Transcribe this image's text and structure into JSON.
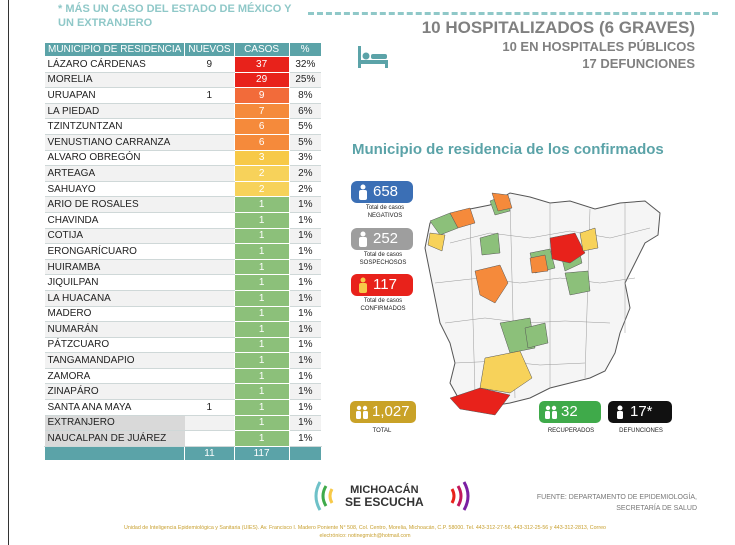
{
  "note": "* MÁS UN CASO DEL ESTADO DE MÉXICO Y UN EXTRANJERO",
  "headline": {
    "hospitalizados": "10 HOSPITALIZADOS (6 GRAVES)",
    "publicos": "10 EN HOSPITALES PÚBLICOS",
    "defunciones": "17 DEFUNCIONES"
  },
  "table": {
    "headers": [
      "MUNICIPIO DE RESIDENCIA",
      "NUEVOS",
      "CASOS",
      "%"
    ],
    "rows": [
      {
        "municipio": "LÁZARO CÁRDENAS",
        "nuevos": "9",
        "casos": "37",
        "pct": "32%",
        "color": "#e8221b"
      },
      {
        "municipio": "MORELIA",
        "nuevos": "",
        "casos": "29",
        "pct": "25%",
        "color": "#e8221b"
      },
      {
        "municipio": "URUAPAN",
        "nuevos": "1",
        "casos": "9",
        "pct": "8%",
        "color": "#f26b3a"
      },
      {
        "municipio": "LA PIEDAD",
        "nuevos": "",
        "casos": "7",
        "pct": "6%",
        "color": "#f58a3b"
      },
      {
        "municipio": "TZINTZUNTZAN",
        "nuevos": "",
        "casos": "6",
        "pct": "5%",
        "color": "#f58a3b"
      },
      {
        "municipio": "VENUSTIANO CARRANZA",
        "nuevos": "",
        "casos": "6",
        "pct": "5%",
        "color": "#f58a3b"
      },
      {
        "municipio": "ALVARO OBREGÓN",
        "nuevos": "",
        "casos": "3",
        "pct": "3%",
        "color": "#f7c948"
      },
      {
        "municipio": "ARTEAGA",
        "nuevos": "",
        "casos": "2",
        "pct": "2%",
        "color": "#f7d25a"
      },
      {
        "municipio": "SAHUAYO",
        "nuevos": "",
        "casos": "2",
        "pct": "2%",
        "color": "#f7d25a"
      },
      {
        "municipio": "ARIO DE ROSALES",
        "nuevos": "",
        "casos": "1",
        "pct": "1%",
        "color": "#8cc07a"
      },
      {
        "municipio": "CHAVINDA",
        "nuevos": "",
        "casos": "1",
        "pct": "1%",
        "color": "#8cc07a"
      },
      {
        "municipio": "COTIJA",
        "nuevos": "",
        "casos": "1",
        "pct": "1%",
        "color": "#8cc07a"
      },
      {
        "municipio": "ERONGARÍCUARO",
        "nuevos": "",
        "casos": "1",
        "pct": "1%",
        "color": "#8cc07a"
      },
      {
        "municipio": "HUIRAMBA",
        "nuevos": "",
        "casos": "1",
        "pct": "1%",
        "color": "#8cc07a"
      },
      {
        "municipio": "JIQUILPAN",
        "nuevos": "",
        "casos": "1",
        "pct": "1%",
        "color": "#8cc07a"
      },
      {
        "municipio": "LA HUACANA",
        "nuevos": "",
        "casos": "1",
        "pct": "1%",
        "color": "#8cc07a"
      },
      {
        "municipio": "MADERO",
        "nuevos": "",
        "casos": "1",
        "pct": "1%",
        "color": "#8cc07a"
      },
      {
        "municipio": "NUMARÁN",
        "nuevos": "",
        "casos": "1",
        "pct": "1%",
        "color": "#8cc07a"
      },
      {
        "municipio": "PÁTZCUARO",
        "nuevos": "",
        "casos": "1",
        "pct": "1%",
        "color": "#8cc07a"
      },
      {
        "municipio": "TANGAMANDAPIO",
        "nuevos": "",
        "casos": "1",
        "pct": "1%",
        "color": "#8cc07a"
      },
      {
        "municipio": "ZAMORA",
        "nuevos": "",
        "casos": "1",
        "pct": "1%",
        "color": "#8cc07a"
      },
      {
        "municipio": "ZINAPÁRO",
        "nuevos": "",
        "casos": "1",
        "pct": "1%",
        "color": "#8cc07a"
      },
      {
        "municipio": "SANTA ANA MAYA",
        "nuevos": "1",
        "casos": "1",
        "pct": "1%",
        "color": "#8cc07a"
      },
      {
        "municipio": "EXTRANJERO",
        "nuevos": "",
        "casos": "1",
        "pct": "1%",
        "color": "#8cc07a"
      },
      {
        "municipio": "NAUCALPAN DE JUÁREZ",
        "nuevos": "",
        "casos": "1",
        "pct": "1%",
        "color": "#8cc07a"
      }
    ],
    "total_nuevos": "11",
    "total_casos": "117"
  },
  "map_title": "Municipio de residencia de los confirmados",
  "stats": {
    "negativos": {
      "value": "658",
      "caption": "Total de casos NEGATIVOS",
      "color": "#3b6fb5"
    },
    "sospechosos": {
      "value": "252",
      "caption": "Total de casos SOSPECHOSOS",
      "color": "#9e9e9e"
    },
    "confirmados": {
      "value": "117",
      "caption": "Total de casos CONFIRMADOS",
      "color": "#e8221b"
    }
  },
  "bottom_stats": {
    "total": {
      "value": "1,027",
      "caption": "TOTAL",
      "color": "#c9a227"
    },
    "recuperados": {
      "value": "32",
      "caption": "RECUPERADOS",
      "color": "#3faa4a"
    },
    "defunciones": {
      "value": "17*",
      "caption": "DEFUNCIONES",
      "color": "#111111"
    }
  },
  "logo": {
    "line1": "MICHOACÁN",
    "line2": "SE ESCUCHA"
  },
  "source": {
    "line1": "FUENTE: DEPARTAMENTO DE EPIDEMIOLOGÍA,",
    "line2": "SECRETARÍA DE SALUD"
  },
  "footer": {
    "line1": "Unidad de Inteligencia Epidemiológica y Sanitaria (UIES). Av. Francisco I. Madero Poniente N° 508, Col. Centro, Morelia, Michoacán, C.P. 58000. Tel. 443-312-27-56, 443-312-25-56 y 443-312-2813, Correo",
    "line2": "electrónico: notinegmich@hotmail.com"
  }
}
